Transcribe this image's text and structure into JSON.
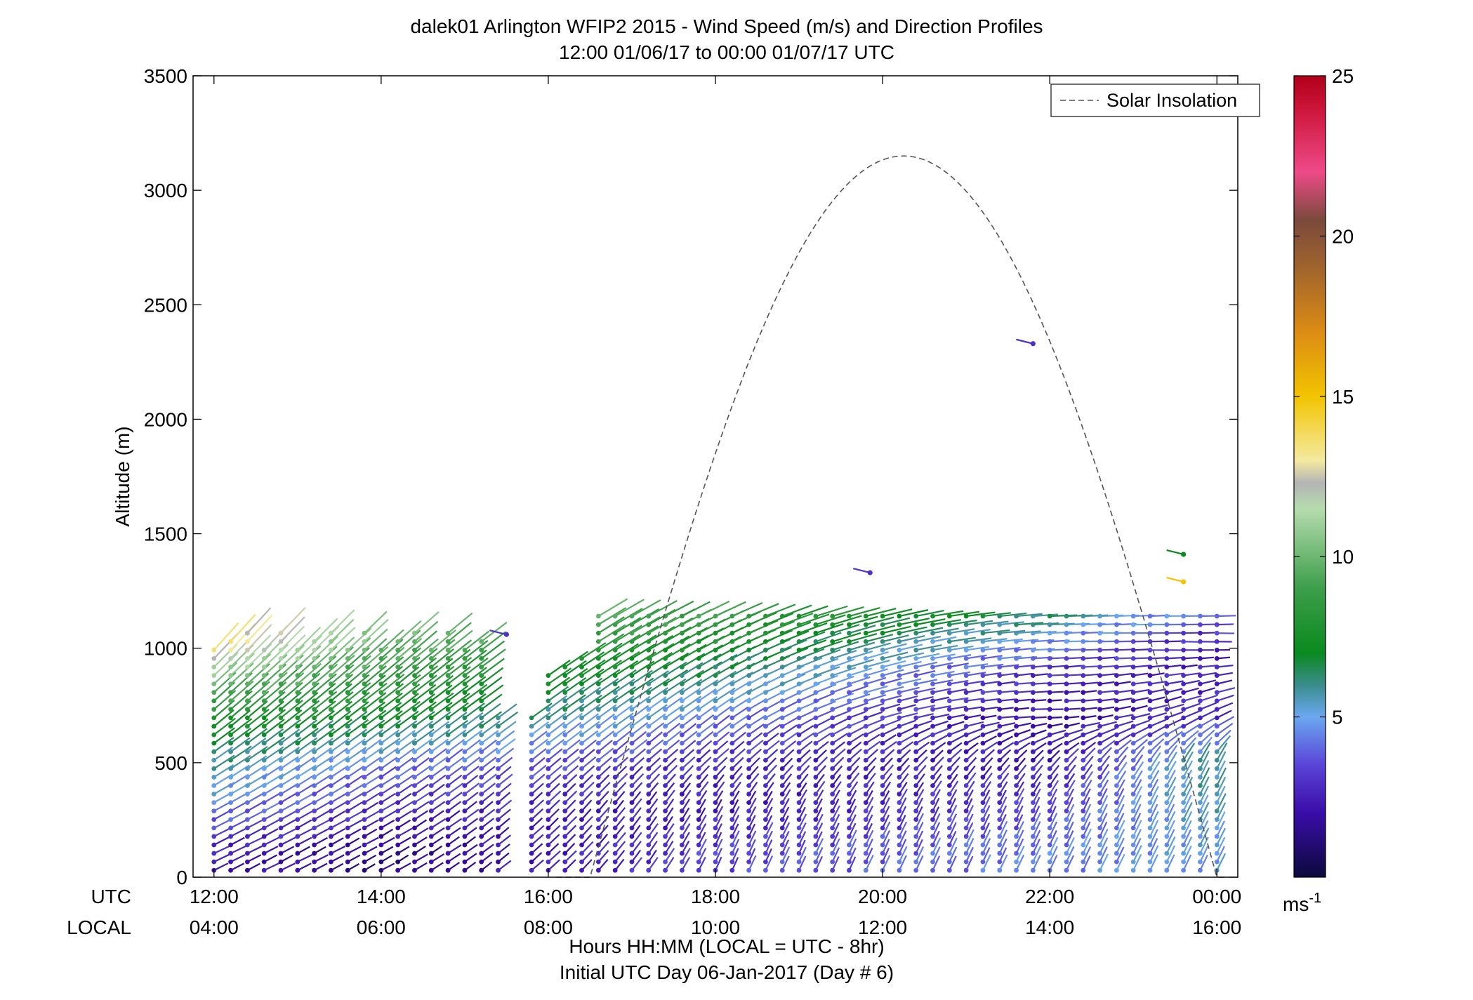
{
  "chart_data": {
    "type": "scatter",
    "title": "dalek01 Arlington WFIP2 2015 - Wind Speed (m/s) and Direction Profiles",
    "subtitle": "12:00 01/06/17 to 00:00 01/07/17  UTC",
    "ylabel": "Altitude (m)",
    "ylim": [
      0,
      3500
    ],
    "yticks": [
      0,
      500,
      1000,
      1500,
      2000,
      2500,
      3000,
      3500
    ],
    "ytick_labels": [
      "0",
      "500",
      "1000",
      "1500",
      "2000",
      "2500",
      "3000",
      "3500"
    ],
    "xlim_hours_utc": [
      11.75,
      24.25
    ],
    "xticks_utc_hours": [
      12,
      14,
      16,
      18,
      20,
      22,
      24
    ],
    "xtick_labels_utc": [
      "12:00",
      "14:00",
      "16:00",
      "18:00",
      "20:00",
      "22:00",
      "00:00"
    ],
    "xtick_labels_local": [
      "04:00",
      "06:00",
      "08:00",
      "10:00",
      "12:00",
      "14:00",
      "16:00"
    ],
    "row_label_utc": "UTC",
    "row_label_local": "LOCAL",
    "xlabel": "Hours HH:MM  (LOCAL = UTC - 8hr)",
    "xlabel2": "Initial UTC Day 06-Jan-2017 (Day # 6)",
    "legend": {
      "entries": [
        "Solar Insolation"
      ],
      "placement": "top-right"
    },
    "colorbar": {
      "range": [
        0,
        25
      ],
      "ticks": [
        5,
        10,
        15,
        20,
        25
      ],
      "tick_labels": [
        "5",
        "10",
        "15",
        "20",
        "25"
      ],
      "units": "ms-1",
      "stops": [
        {
          "v": 0,
          "c": "#0b0a3c"
        },
        {
          "v": 2,
          "c": "#3a0ca8"
        },
        {
          "v": 3.5,
          "c": "#5a44d8"
        },
        {
          "v": 5,
          "c": "#6aa8f0"
        },
        {
          "v": 6,
          "c": "#3a8c8c"
        },
        {
          "v": 7,
          "c": "#0a8a1e"
        },
        {
          "v": 9,
          "c": "#3c9e4a"
        },
        {
          "v": 11.5,
          "c": "#b6dcae"
        },
        {
          "v": 12.3,
          "c": "#b4b4b4"
        },
        {
          "v": 13,
          "c": "#f4eaa0"
        },
        {
          "v": 15,
          "c": "#f2c400"
        },
        {
          "v": 17,
          "c": "#dc8c14"
        },
        {
          "v": 19,
          "c": "#a0642c"
        },
        {
          "v": 20.5,
          "c": "#7a4a3c"
        },
        {
          "v": 22,
          "c": "#ee4a88"
        },
        {
          "v": 24,
          "c": "#cc1438"
        },
        {
          "v": 25,
          "c": "#b0001a"
        }
      ]
    },
    "solar_insolation": {
      "style": "dashed",
      "color": "#555555",
      "sunrise_utc_hours": 16.5,
      "sunset_utc_hours": 24.0,
      "peak_utc_hours": 19.9,
      "peak_altitude_equivalent": 3150
    },
    "profile_times_utc_hours": [
      12.0,
      12.2,
      12.4,
      12.6,
      12.8,
      13.0,
      13.2,
      13.4,
      13.6,
      13.8,
      14.0,
      14.2,
      14.4,
      14.6,
      14.8,
      15.0,
      15.2,
      15.4,
      15.8,
      16.0,
      16.2,
      16.4,
      16.6,
      16.8,
      17.0,
      17.2,
      17.4,
      17.6,
      17.8,
      18.0,
      18.2,
      18.4,
      18.6,
      18.8,
      19.0,
      19.2,
      19.4,
      19.6,
      19.8,
      20.0,
      20.2,
      20.4,
      20.6,
      20.8,
      21.0,
      21.2,
      21.4,
      21.6,
      21.8,
      22.0,
      22.2,
      22.4,
      22.6,
      22.8,
      23.0,
      23.2,
      23.4,
      23.6,
      23.8,
      24.0
    ],
    "sample_profiles": [
      {
        "time_utc": 12.0,
        "altitude_m": [
          100,
          300,
          500,
          700,
          900,
          1000
        ],
        "speed_ms": [
          2.5,
          4.5,
          6.0,
          8.0,
          11.0,
          13.5
        ],
        "direction_deg": [
          200,
          210,
          220,
          230,
          235,
          240
        ]
      },
      {
        "time_utc": 14.0,
        "altitude_m": [
          100,
          300,
          500,
          700,
          900,
          1100
        ],
        "speed_ms": [
          1.5,
          3.0,
          4.5,
          7.5,
          9.0,
          11.0
        ],
        "direction_deg": [
          200,
          210,
          220,
          225,
          230,
          235
        ]
      },
      {
        "time_utc": 18.0,
        "altitude_m": [
          100,
          300,
          500,
          700,
          900,
          1200
        ],
        "speed_ms": [
          3.5,
          2.5,
          3.0,
          4.5,
          6.5,
          9.5
        ],
        "direction_deg": [
          250,
          245,
          225,
          220,
          215,
          210
        ]
      },
      {
        "time_utc": 22.0,
        "altitude_m": [
          100,
          300,
          500,
          700,
          900,
          1200
        ],
        "speed_ms": [
          4.5,
          3.5,
          2.5,
          2.0,
          3.0,
          7.0
        ],
        "direction_deg": [
          250,
          250,
          230,
          150,
          160,
          170
        ]
      },
      {
        "time_utc": 23.8,
        "altitude_m": [
          100,
          300,
          500,
          700,
          1000,
          1400
        ],
        "speed_ms": [
          5.0,
          5.5,
          6.0,
          3.0,
          2.5,
          7.0
        ],
        "direction_deg": [
          250,
          250,
          250,
          200,
          150,
          180
        ]
      }
    ],
    "isolated_points": [
      {
        "time_utc": 15.5,
        "altitude_m": 1060,
        "speed_ms": 3.0
      },
      {
        "time_utc": 19.85,
        "altitude_m": 1330,
        "speed_ms": 3.0
      },
      {
        "time_utc": 21.8,
        "altitude_m": 2330,
        "speed_ms": 3.0
      },
      {
        "time_utc": 23.6,
        "altitude_m": 1410,
        "speed_ms": 7.0
      },
      {
        "time_utc": 23.6,
        "altitude_m": 1290,
        "speed_ms": 15.0
      }
    ]
  }
}
